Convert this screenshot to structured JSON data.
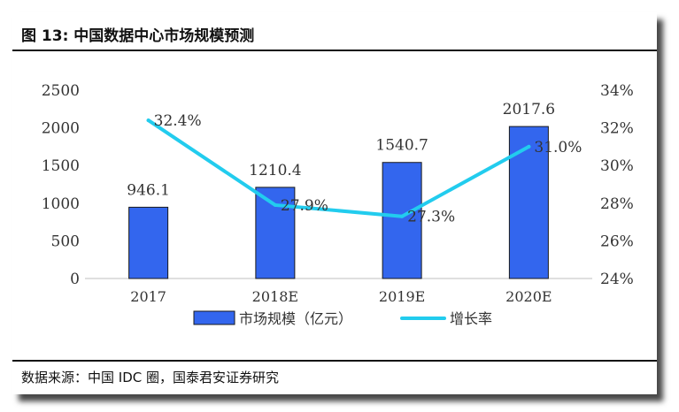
{
  "figure": {
    "title": "图 13:  中国数据中心市场规模预测",
    "source": "数据来源：中国 IDC 圈，国泰君安证券研究"
  },
  "colors": {
    "bar": "#3366ee",
    "bar_stroke": "#1a1a1a",
    "line": "#22ccee"
  },
  "chart_data": {
    "type": "bar",
    "categories": [
      "2017",
      "2018E",
      "2019E",
      "2020E"
    ],
    "series": [
      {
        "name": "市场规模（亿元）",
        "type": "bar",
        "axis": "left",
        "values": [
          946.1,
          1210.4,
          1540.7,
          2017.6
        ],
        "labels": [
          "946.1",
          "1210.4",
          "1540.7",
          "2017.6"
        ]
      },
      {
        "name": "增长率",
        "type": "line",
        "axis": "right",
        "values": [
          32.4,
          27.9,
          27.3,
          31.0
        ],
        "labels": [
          "32.4%",
          "27.9%",
          "27.3%",
          "31.0%"
        ]
      }
    ],
    "y_left": {
      "lim": [
        0,
        2500
      ],
      "ticks": [
        "0",
        "500",
        "1000",
        "1500",
        "2000",
        "2500"
      ]
    },
    "y_right": {
      "lim": [
        24,
        34
      ],
      "ticks": [
        "24%",
        "26%",
        "28%",
        "30%",
        "32%",
        "34%"
      ]
    },
    "grid": false,
    "legend": "bottom"
  }
}
